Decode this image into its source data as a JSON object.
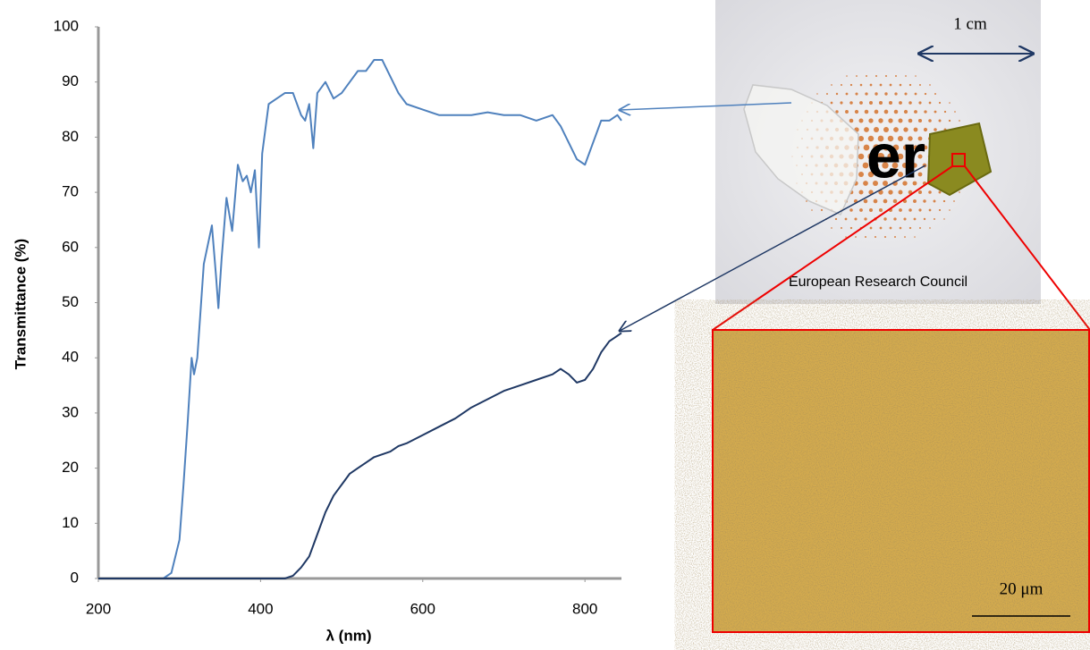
{
  "chart_data": {
    "type": "line",
    "xlabel": "λ (nm)",
    "ylabel": "Transmittance (%)",
    "x": [
      200,
      280,
      290,
      300,
      305,
      310,
      315,
      318,
      322,
      330,
      340,
      345,
      348,
      352,
      358,
      365,
      372,
      378,
      383,
      388,
      393,
      398,
      402,
      410,
      420,
      430,
      440,
      450,
      455,
      460,
      465,
      470,
      480,
      490,
      500,
      510,
      520,
      530,
      540,
      550,
      560,
      570,
      580,
      600,
      620,
      640,
      660,
      680,
      700,
      720,
      740,
      760,
      770,
      780,
      790,
      800,
      810,
      820,
      830,
      840,
      845
    ],
    "series": [
      {
        "color": "#4f81bd",
        "values": [
          0,
          0,
          1,
          7,
          17,
          28,
          40,
          37,
          40,
          57,
          64,
          55,
          49,
          58,
          69,
          63,
          75,
          72,
          73,
          70,
          74,
          60,
          77,
          86,
          87,
          88,
          88,
          84,
          83,
          86,
          78,
          88,
          90,
          87,
          88,
          90,
          92,
          92,
          94,
          94,
          91,
          88,
          86,
          85,
          84,
          84,
          84,
          84.5,
          84,
          84,
          83,
          84,
          82,
          79,
          76,
          75,
          79,
          83,
          83,
          84,
          83
        ]
      },
      {
        "color": "#1f3864",
        "values": [
          0,
          0,
          0,
          0,
          0,
          0,
          0,
          0,
          0,
          0,
          0,
          0,
          0,
          0,
          0,
          0,
          0,
          0,
          0,
          0,
          0,
          0,
          0,
          0,
          0,
          0,
          0.5,
          2,
          3,
          4,
          6,
          8,
          12,
          15,
          17,
          19,
          20,
          21,
          22,
          22.5,
          23,
          24,
          24.5,
          26,
          27.5,
          29,
          31,
          32.5,
          34,
          35,
          36,
          37,
          38,
          37,
          35.5,
          36,
          38,
          41,
          43,
          44,
          44.5
        ]
      }
    ],
    "xlim": [
      200,
      845
    ],
    "xticks": [
      200,
      400,
      600,
      800
    ],
    "ylim": [
      0,
      100
    ],
    "yticks": [
      0,
      10,
      20,
      30,
      40,
      50,
      60,
      70,
      80,
      90,
      100
    ],
    "grid": false,
    "annotations": [
      "1 cm",
      "European Research Council",
      "er",
      "20 μm"
    ]
  }
}
